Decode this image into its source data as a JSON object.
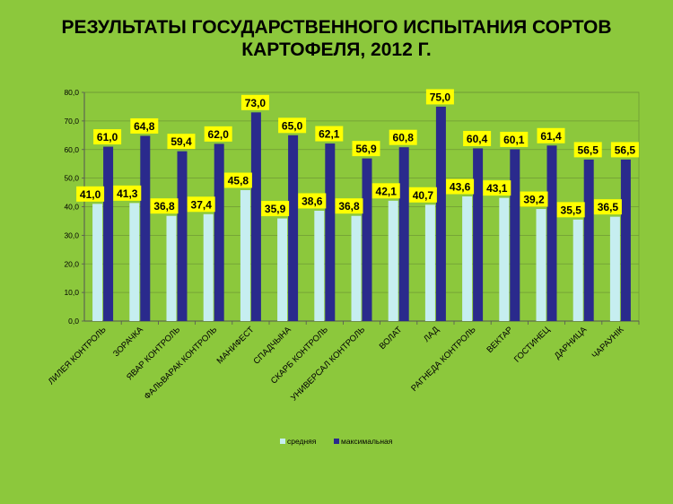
{
  "chart_data": {
    "type": "bar",
    "title": "РЕЗУЛЬТАТЫ ГОСУДАРСТВЕННОГО ИСПЫТАНИЯ СОРТОВ КАРТОФЕЛЯ, 2012 Г.",
    "title_lines": [
      "РЕЗУЛЬТАТЫ ГОСУДАРСТВЕННОГО ИСПЫТАНИЯ СОРТОВ",
      "КАРТОФЕЛЯ, 2012 Г."
    ],
    "categories": [
      "ЛИЛЕЯ КОНТРОЛЬ",
      "ЗОРАЧКА",
      "ЯВАР КОНТРОЛЬ",
      "ФАЛЬВАРАК КОНТРОЛЬ",
      "МАНИФЕСТ",
      "СПАДЧЫНА",
      "СКАРБ КОНТРОЛЬ",
      "УНИВЕРСАЛ КОНТРОЛЬ",
      "ВОЛАТ",
      "ЛАД",
      "РАГНЕДА КОНТРОЛЬ",
      "ВЕКТАР",
      "ГОСТИНЕЦ",
      "ДАРНИЦА",
      "ЧАРАУНІК"
    ],
    "series": [
      {
        "name": "средняя",
        "color": "#c6eef0",
        "values": [
          41.0,
          41.3,
          36.8,
          37.4,
          45.8,
          35.9,
          38.6,
          36.8,
          42.1,
          40.7,
          43.6,
          43.1,
          39.2,
          35.5,
          36.5
        ],
        "labels": [
          "41,0",
          "41,3",
          "36,8",
          "37,4",
          "45,8",
          "35,9",
          "38,6",
          "36,8",
          "42,1",
          "40,7",
          "43,6",
          "43,1",
          "39,2",
          "35,5",
          "36,5"
        ]
      },
      {
        "name": "максимальная",
        "color": "#2a2a8c",
        "values": [
          61.0,
          64.8,
          59.4,
          62.0,
          73.0,
          65.0,
          62.1,
          56.9,
          60.8,
          75.0,
          60.4,
          60.1,
          61.4,
          56.5,
          56.5
        ],
        "labels": [
          "61,0",
          "64,8",
          "59,4",
          "62,0",
          "73,0",
          "65,0",
          "62,1",
          "56,9",
          "60,8",
          "75,0",
          "60,4",
          "60,1",
          "61,4",
          "56,5",
          "56,5"
        ]
      }
    ],
    "yticks": [
      "0,0",
      "10,0",
      "20,0",
      "30,0",
      "40,0",
      "50,0",
      "60,0",
      "70,0",
      "80,0"
    ],
    "ylim": [
      0,
      80
    ],
    "grid": true,
    "legend": "bottom",
    "label_box_color": "#ffff00",
    "background": "#8cc83c"
  }
}
